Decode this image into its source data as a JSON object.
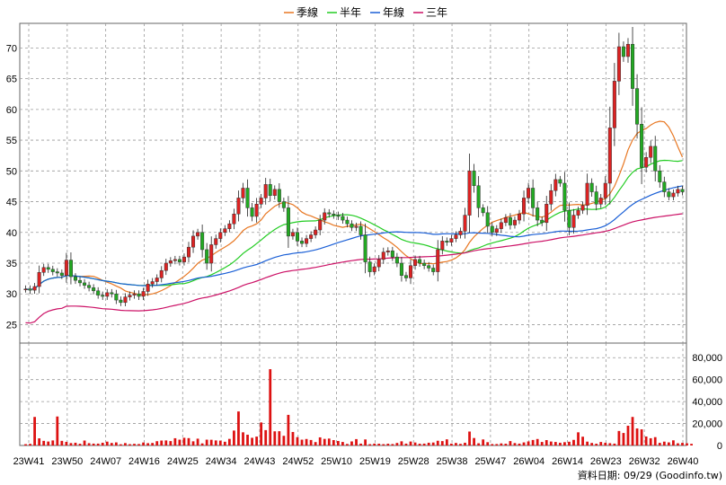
{
  "chart_data": [
    {
      "type": "candlestick",
      "legend": [
        {
          "name": "季線",
          "color": "#e87722"
        },
        {
          "name": "半年",
          "color": "#22cc22"
        },
        {
          "name": "年線",
          "color": "#1a5fd6"
        },
        {
          "name": "三年",
          "color": "#cc1166"
        }
      ],
      "up_color": "#dd2222",
      "down_color": "#22aa22",
      "ylim": [
        22,
        74
      ],
      "yticks": [
        25,
        30,
        35,
        40,
        45,
        50,
        55,
        60,
        65,
        70
      ],
      "grid": true,
      "x_ticks": [
        "23W41",
        "23W50",
        "24W07",
        "24W16",
        "24W25",
        "24W34",
        "24W43",
        "24W52",
        "25W10",
        "25W19",
        "25W28",
        "25W38",
        "25W47",
        "26W04",
        "26W14",
        "26W23",
        "26W32",
        "26W40"
      ],
      "close_series": [
        30.8,
        30.6,
        31.2,
        33.5,
        34.3,
        34.0,
        33.6,
        33.4,
        33.0,
        35.5,
        32.8,
        32.2,
        31.8,
        31.4,
        31.0,
        30.5,
        29.8,
        29.6,
        30.2,
        30.0,
        29.0,
        28.6,
        29.5,
        29.8,
        30.0,
        29.6,
        30.4,
        31.6,
        32.0,
        32.6,
        33.8,
        35.0,
        35.4,
        35.6,
        35.2,
        36.0,
        37.6,
        39.4,
        40.0,
        37.2,
        35.0,
        38.0,
        39.0,
        40.0,
        40.6,
        41.4,
        43.0,
        45.6,
        47.2,
        44.0,
        42.6,
        44.6,
        45.6,
        47.8,
        46.0,
        47.0,
        45.0,
        44.0,
        39.4,
        40.0,
        38.6,
        38.2,
        39.0,
        39.6,
        40.4,
        42.0,
        43.2,
        43.0,
        42.8,
        42.6,
        42.0,
        41.4,
        40.8,
        41.0,
        39.6,
        35.2,
        33.6,
        34.4,
        35.6,
        36.8,
        37.0,
        36.0,
        35.0,
        33.0,
        32.6,
        34.6,
        35.6,
        35.0,
        34.6,
        34.2,
        33.6,
        37.2,
        38.6,
        38.4,
        39.0,
        39.6,
        40.2,
        42.8,
        50.0,
        47.6,
        44.0,
        43.2,
        41.0,
        40.0,
        40.6,
        41.6,
        42.4,
        41.2,
        42.0,
        43.0,
        45.6,
        47.2,
        44.0,
        42.0,
        41.6,
        44.6,
        46.8,
        48.6,
        48.0,
        43.6,
        40.8,
        42.8,
        43.6,
        44.4,
        48.0,
        46.6,
        44.6,
        45.6,
        48.0,
        57.0,
        64.6,
        70.2,
        68.6,
        70.6,
        63.4,
        57.6,
        50.6,
        52.2,
        54.0,
        50.0,
        48.2,
        46.6,
        45.8,
        46.4,
        47.0,
        46.6
      ],
      "volume_axis": {
        "ylim": [
          0,
          90000
        ],
        "ticks": [
          0,
          20000,
          40000,
          60000,
          80000
        ],
        "tick_labels": [
          "0",
          "20,000",
          "40,000",
          "60,000",
          "80,000"
        ]
      },
      "volume_series": [
        1200,
        1500,
        26000,
        6500,
        4200,
        3600,
        4600,
        26400,
        4200,
        3300,
        2200,
        2500,
        1600,
        4500,
        2100,
        1700,
        1700,
        2500,
        3500,
        2300,
        2800,
        1100,
        2200,
        1200,
        1500,
        1300,
        2700,
        2100,
        2300,
        3900,
        4500,
        4600,
        4000,
        6600,
        5300,
        7000,
        6700,
        3800,
        6200,
        1900,
        5300,
        5200,
        4600,
        4400,
        3400,
        6000,
        13600,
        31000,
        12000,
        9800,
        7000,
        8100,
        21000,
        14000,
        69500,
        12900,
        13000,
        8800,
        27900,
        12300,
        7600,
        5300,
        5900,
        5000,
        3100,
        7400,
        6000,
        6300,
        4900,
        4100,
        3200,
        1400,
        3700,
        5800,
        1700,
        5500,
        1200,
        1700,
        1600,
        1200,
        1600,
        1300,
        2300,
        3800,
        1700,
        3600,
        2700,
        1600,
        1700,
        2500,
        2700,
        4300,
        4000,
        5600,
        1700,
        2300,
        1500,
        2500,
        12700,
        6800,
        2000,
        5500,
        3000,
        1300,
        1300,
        1900,
        1600,
        4000,
        2200,
        1700,
        2800,
        3700,
        5000,
        5900,
        3200,
        4900,
        3600,
        3200,
        2500,
        3000,
        3400,
        5100,
        12000,
        8000,
        3500,
        2300,
        1600,
        3200,
        2500,
        2100,
        1700,
        13200,
        11400,
        18000,
        26000,
        15500,
        14700,
        8200,
        6600,
        7600,
        2400,
        3500,
        2800,
        4700,
        2000,
        2400,
        2000,
        1500
      ],
      "footer": "資料日期: 09/29 (Goodinfo.tw)"
    }
  ]
}
